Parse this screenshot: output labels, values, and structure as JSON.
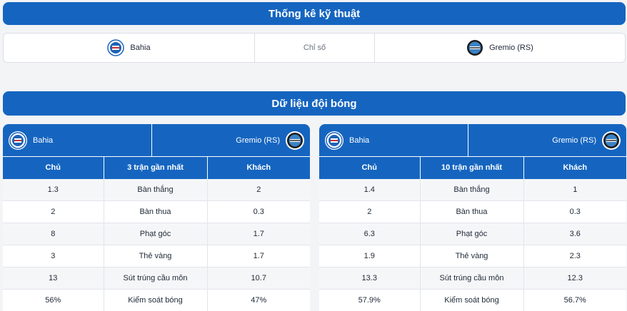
{
  "tech_stats": {
    "title": "Thống kê kỹ thuật",
    "home_team": "Bahia",
    "indicator_label": "Chỉ số",
    "away_team": "Gremio (RS)"
  },
  "team_data": {
    "title": "Dữ liệu đội bóng",
    "panels": [
      {
        "home_team": "Bahia",
        "away_team": "Gremio (RS)",
        "col_home": "Chủ",
        "col_metric": "3 trận gần nhất",
        "col_away": "Khách",
        "rows": [
          {
            "home": "1.3",
            "metric": "Bàn thắng",
            "away": "2"
          },
          {
            "home": "2",
            "metric": "Bàn thua",
            "away": "0.3"
          },
          {
            "home": "8",
            "metric": "Phạt góc",
            "away": "1.7"
          },
          {
            "home": "3",
            "metric": "Thẻ vàng",
            "away": "1.7"
          },
          {
            "home": "13",
            "metric": "Sút trúng cầu môn",
            "away": "10.7"
          },
          {
            "home": "56%",
            "metric": "Kiểm soát bóng",
            "away": "47%"
          }
        ]
      },
      {
        "home_team": "Bahia",
        "away_team": "Gremio (RS)",
        "col_home": "Chủ",
        "col_metric": "10 trận gần nhất",
        "col_away": "Khách",
        "rows": [
          {
            "home": "1.4",
            "metric": "Bàn thắng",
            "away": "1"
          },
          {
            "home": "2",
            "metric": "Bàn thua",
            "away": "0.3"
          },
          {
            "home": "6.3",
            "metric": "Phạt góc",
            "away": "3.6"
          },
          {
            "home": "1.9",
            "metric": "Thẻ vàng",
            "away": "2.3"
          },
          {
            "home": "13.3",
            "metric": "Sút trúng cầu môn",
            "away": "12.3"
          },
          {
            "home": "57.9%",
            "metric": "Kiểm soát bóng",
            "away": "56.7%"
          }
        ]
      }
    ]
  },
  "icons": {
    "home_logo": "bahia-crest-icon",
    "away_logo": "gremio-crest-icon"
  },
  "colors": {
    "header_blue": "#1565c0",
    "row_alt": "#f5f6f8"
  }
}
